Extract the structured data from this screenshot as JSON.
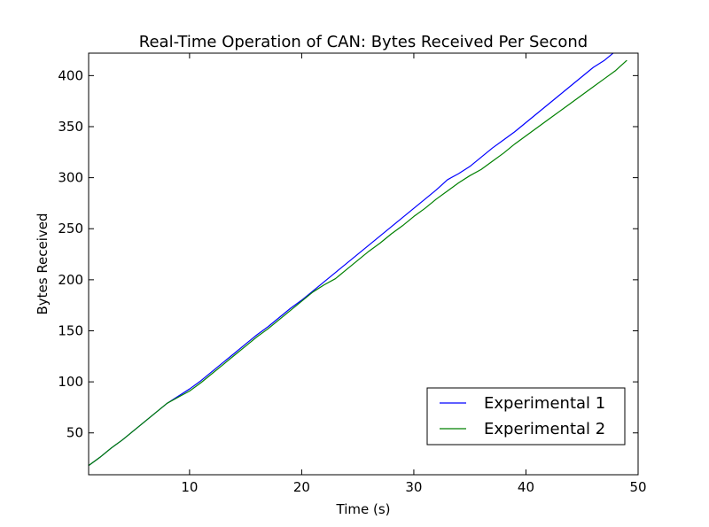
{
  "chart_data": {
    "type": "line",
    "title": "Real-Time Operation of CAN: Bytes Received Per Second",
    "xlabel": "Time (s)",
    "ylabel": "Bytes Received",
    "xlim": [
      1,
      50
    ],
    "ylim": [
      9,
      422
    ],
    "x_ticks": [
      10,
      20,
      30,
      40,
      50
    ],
    "y_ticks": [
      50,
      100,
      150,
      200,
      250,
      300,
      350,
      400
    ],
    "grid": false,
    "legend_position": "lower-right",
    "series": [
      {
        "name": "Experimental 1",
        "color": "#0000ff",
        "x": [
          1,
          2,
          3,
          4,
          5,
          6,
          7,
          8,
          9,
          10,
          11,
          12,
          13,
          14,
          15,
          16,
          17,
          18,
          19,
          20,
          21,
          22,
          23,
          24,
          25,
          26,
          27,
          28,
          29,
          30,
          31,
          32,
          33,
          34,
          35,
          36,
          37,
          38,
          39,
          40,
          41,
          42,
          43,
          44,
          45,
          46,
          47,
          48,
          49
        ],
        "y": [
          18,
          26,
          35,
          43,
          52,
          61,
          70,
          79,
          86,
          93,
          101,
          110,
          119,
          128,
          137,
          146,
          154,
          163,
          172,
          180,
          189,
          198,
          207,
          216,
          225,
          234,
          243,
          252,
          261,
          270,
          279,
          288,
          298,
          304,
          311,
          320,
          329,
          337,
          345,
          354,
          363,
          372,
          381,
          390,
          399,
          408,
          415,
          424,
          431
        ]
      },
      {
        "name": "Experimental 2",
        "color": "#008000",
        "x": [
          1,
          2,
          3,
          4,
          5,
          6,
          7,
          8,
          9,
          10,
          11,
          12,
          13,
          14,
          15,
          16,
          17,
          18,
          19,
          20,
          21,
          22,
          23,
          24,
          25,
          26,
          27,
          28,
          29,
          30,
          31,
          32,
          33,
          34,
          35,
          36,
          37,
          38,
          39,
          40,
          41,
          42,
          43,
          44,
          45,
          46,
          47,
          48,
          49
        ],
        "y": [
          18,
          26,
          35,
          43,
          52,
          61,
          70,
          79,
          85,
          91,
          99,
          108,
          117,
          126,
          135,
          144,
          152,
          161,
          170,
          179,
          188,
          195,
          201,
          210,
          219,
          228,
          236,
          245,
          253,
          262,
          270,
          279,
          287,
          295,
          302,
          308,
          316,
          324,
          333,
          341,
          349,
          357,
          365,
          373,
          381,
          389,
          397,
          405,
          415
        ]
      }
    ]
  }
}
